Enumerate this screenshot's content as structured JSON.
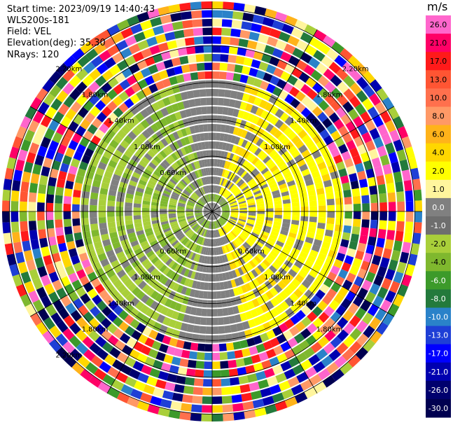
{
  "header": {
    "start_time": "Start time: 2023/09/19 14:40:43",
    "instrument": "WLS200s-181",
    "field": "Field: VEL",
    "elevation": "Elevation(deg): 35.30",
    "nrays": "NRays: 120"
  },
  "chart_data": {
    "type": "heatmap",
    "subtype": "polar-ppi",
    "field": "VEL",
    "nrays": 120,
    "elevation_deg": 35.3,
    "range_rings_km": [
      0.6,
      1.0,
      1.4,
      1.8,
      2.2
    ],
    "range_ring_labels": {
      "upper_left": [
        "0.60km",
        "1.00km",
        "1.40km",
        "1.80km",
        "2.20km"
      ],
      "upper_right": [
        "1.00km",
        "1.40km",
        "1.80km",
        "2.20km"
      ],
      "lower_left": [
        "0.60km",
        "1.00km",
        "1.40km",
        "1.80km",
        "2.20km"
      ],
      "lower_right": [
        "0.60km",
        "1.00km",
        "1.40km",
        "1.80km"
      ]
    },
    "colorbar": {
      "unit": "m/s",
      "tick_labels": [
        "26.0",
        "21.0",
        "17.0",
        "13.0",
        "10.0",
        "8.0",
        "6.0",
        "4.0",
        "2.0",
        "1.0",
        "0.0",
        "-1.0",
        "-2.0",
        "-4.0",
        "-6.0",
        "-8.0",
        "-10.0",
        "-13.0",
        "-17.0",
        "-21.0",
        "-26.0",
        "-30.0"
      ],
      "colors": [
        "#ff66cc",
        "#ff0066",
        "#ff1a1a",
        "#ff5533",
        "#ff704d",
        "#ff9966",
        "#ffb31a",
        "#ffd700",
        "#ffff00",
        "#fff59d",
        "#808080",
        "#6e6e6e",
        "#a9cf3a",
        "#7fb82e",
        "#3c9a2a",
        "#237a3c",
        "#2a82c9",
        "#1e3fd6",
        "#0000ff",
        "#0000b0",
        "#00006e",
        "#000050"
      ]
    },
    "inner_region": {
      "positive_side": "east",
      "negative_side": "west",
      "approx_speed_ms": 2.0,
      "clear_radius_km": 1.5
    }
  }
}
